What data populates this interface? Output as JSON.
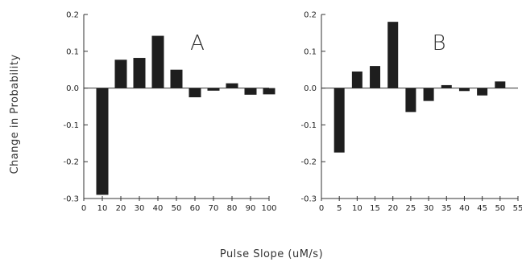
{
  "figure": {
    "ylabel": "Change in Probability",
    "xlabel": "Pulse Slope (uM/s)"
  },
  "chart_data": [
    {
      "type": "bar",
      "panel_label": "A",
      "x": [
        10,
        20,
        30,
        40,
        50,
        60,
        70,
        80,
        90,
        100
      ],
      "values": [
        -0.29,
        0.077,
        0.082,
        0.142,
        0.05,
        -0.025,
        -0.007,
        0.013,
        -0.018,
        -0.017
      ],
      "xticks": [
        0,
        10,
        20,
        30,
        40,
        50,
        60,
        70,
        80,
        90,
        100
      ],
      "yticks": [
        0.2,
        0.1,
        0.0,
        -0.1,
        -0.2,
        -0.3
      ],
      "ytick_labels": [
        "0.2",
        "0.1",
        "0.0",
        "-0.1",
        "-0.2",
        "-0.3"
      ],
      "xlim": [
        0,
        100
      ],
      "ylim": [
        -0.3,
        0.2
      ],
      "bar_color": "#1e1e1e",
      "grid": false
    },
    {
      "type": "bar",
      "panel_label": "B",
      "x": [
        5,
        10,
        15,
        20,
        25,
        30,
        35,
        40,
        45,
        50
      ],
      "values": [
        -0.175,
        0.045,
        0.06,
        0.18,
        -0.065,
        -0.035,
        0.008,
        -0.008,
        -0.02,
        0.018
      ],
      "xticks": [
        0,
        5,
        10,
        15,
        20,
        25,
        30,
        35,
        40,
        45,
        50,
        55
      ],
      "yticks": [
        0.2,
        0.1,
        0.0,
        -0.1,
        -0.2,
        -0.3
      ],
      "ytick_labels": [
        "0.2",
        "0.1",
        "0.0",
        "-0.1",
        "-0.2",
        "-0.3"
      ],
      "xlim": [
        0,
        55
      ],
      "ylim": [
        -0.3,
        0.2
      ],
      "bar_color": "#1e1e1e",
      "grid": false
    }
  ]
}
